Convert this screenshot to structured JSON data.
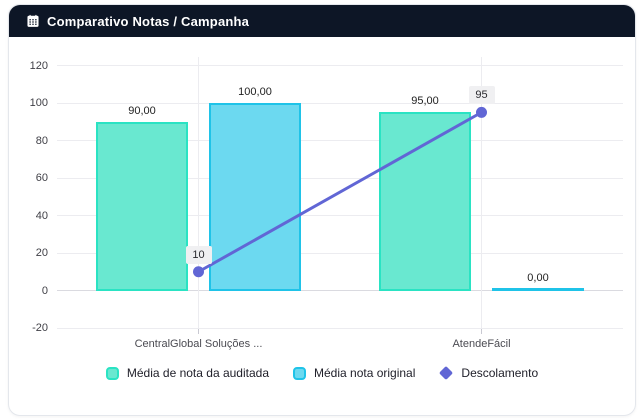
{
  "header": {
    "title": "Comparativo Notas / Campanha",
    "background": "#0d1626",
    "text_color": "#ffffff"
  },
  "chart_data": {
    "type": "combo-bar-line",
    "title": "Comparativo Notas / Campanha",
    "categories": [
      "CentralGlobal Soluções ...",
      "AtendeFácil"
    ],
    "series": [
      {
        "name": "Média de nota da auditada",
        "type": "bar",
        "values": [
          90,
          95
        ],
        "value_labels": [
          "90,00",
          "95,00"
        ],
        "fill": "#69e8d0",
        "stroke": "#2ae3c3"
      },
      {
        "name": "Média nota original",
        "type": "bar",
        "values": [
          100,
          0
        ],
        "value_labels": [
          "100,00",
          "0,00"
        ],
        "fill": "#6cd9f0",
        "stroke": "#1fc3e8"
      },
      {
        "name": "Descolamento",
        "type": "line",
        "values": [
          10,
          95
        ],
        "value_labels": [
          "10",
          "95"
        ],
        "stroke": "#6166d5"
      }
    ],
    "y_axis": {
      "min": -20,
      "max": 120,
      "ticks": [
        120,
        100,
        80,
        60,
        40,
        20,
        0,
        -20
      ]
    },
    "grid": {
      "horizontal": true,
      "vertical_at_categories": true
    },
    "legend": {
      "position": "bottom"
    },
    "colors": {
      "grid_line": "#ececf0",
      "zero_line": "#dadae0",
      "axis_text": "#3f3f46",
      "label_box_bg": "#f0f0f2"
    }
  }
}
